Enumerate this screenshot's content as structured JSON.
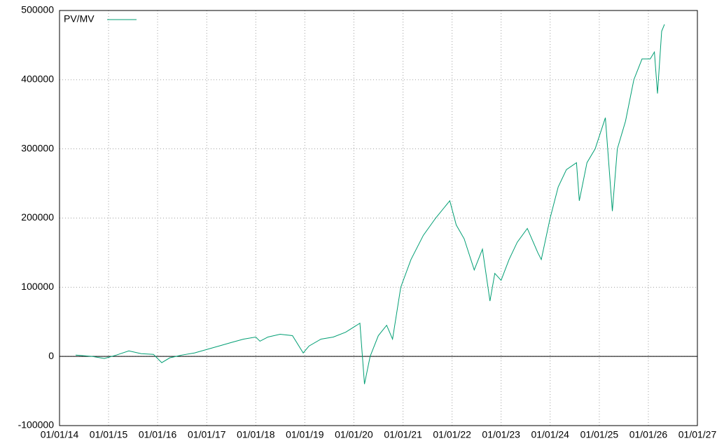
{
  "chart_data": {
    "type": "line",
    "x": [
      "2014-05-01",
      "2014-09-01",
      "2014-12-01",
      "2015-03-01",
      "2015-06-01",
      "2015-09-01",
      "2015-12-01",
      "2016-02-01",
      "2016-04-01",
      "2016-07-01",
      "2016-10-01",
      "2017-01-01",
      "2017-04-01",
      "2017-07-01",
      "2017-10-01",
      "2018-01-01",
      "2018-02-01",
      "2018-04-01",
      "2018-07-01",
      "2018-10-01",
      "2018-12-20",
      "2019-02-01",
      "2019-05-01",
      "2019-08-01",
      "2019-11-01",
      "2020-02-15",
      "2020-03-20",
      "2020-05-01",
      "2020-07-01",
      "2020-09-01",
      "2020-10-15",
      "2020-12-15",
      "2021-03-01",
      "2021-06-01",
      "2021-09-01",
      "2021-12-15",
      "2022-02-01",
      "2022-04-01",
      "2022-06-15",
      "2022-08-15",
      "2022-10-10",
      "2022-11-15",
      "2023-01-01",
      "2023-03-01",
      "2023-05-01",
      "2023-07-15",
      "2023-10-01",
      "2023-10-27",
      "2024-01-01",
      "2024-03-01",
      "2024-05-01",
      "2024-07-15",
      "2024-08-05",
      "2024-10-01",
      "2024-12-01",
      "2025-02-15",
      "2025-04-08",
      "2025-05-15",
      "2025-07-15",
      "2025-09-15",
      "2025-11-15",
      "2026-01-15",
      "2026-02-15",
      "2026-03-10",
      "2026-04-10",
      "2026-05-01"
    ],
    "series": [
      {
        "name": "PV/MV",
        "color": "#009e73",
        "values": [
          2000,
          0,
          -3000,
          2000,
          8000,
          4000,
          3000,
          -9000,
          -2000,
          2000,
          5000,
          10000,
          15000,
          20000,
          25000,
          28000,
          22000,
          28000,
          32000,
          30000,
          5000,
          15000,
          25000,
          28000,
          35000,
          48000,
          -40000,
          0,
          30000,
          45000,
          25000,
          100000,
          140000,
          175000,
          200000,
          225000,
          190000,
          170000,
          125000,
          155000,
          80000,
          120000,
          110000,
          140000,
          165000,
          185000,
          150000,
          140000,
          200000,
          245000,
          270000,
          280000,
          225000,
          280000,
          300000,
          345000,
          210000,
          300000,
          340000,
          400000,
          430000,
          430000,
          440000,
          380000,
          470000,
          480000
        ]
      }
    ],
    "xlim": [
      "2014-01-01",
      "2027-01-01"
    ],
    "xticks": [
      {
        "value": "2014-01-01",
        "label": "01/01/14"
      },
      {
        "value": "2015-01-01",
        "label": "01/01/15"
      },
      {
        "value": "2016-01-01",
        "label": "01/01/16"
      },
      {
        "value": "2017-01-01",
        "label": "01/01/17"
      },
      {
        "value": "2018-01-01",
        "label": "01/01/18"
      },
      {
        "value": "2019-01-01",
        "label": "01/01/19"
      },
      {
        "value": "2020-01-01",
        "label": "01/01/20"
      },
      {
        "value": "2021-01-01",
        "label": "01/01/21"
      },
      {
        "value": "2022-01-01",
        "label": "01/01/22"
      },
      {
        "value": "2023-01-01",
        "label": "01/01/23"
      },
      {
        "value": "2024-01-01",
        "label": "01/01/24"
      },
      {
        "value": "2025-01-01",
        "label": "01/01/25"
      },
      {
        "value": "2026-01-01",
        "label": "01/01/26"
      },
      {
        "value": "2027-01-01",
        "label": "01/01/27"
      }
    ],
    "ylim": [
      -100000,
      500000
    ],
    "yticks": [
      -100000,
      0,
      100000,
      200000,
      300000,
      400000,
      500000
    ],
    "grid": true,
    "legend": "top-left"
  }
}
